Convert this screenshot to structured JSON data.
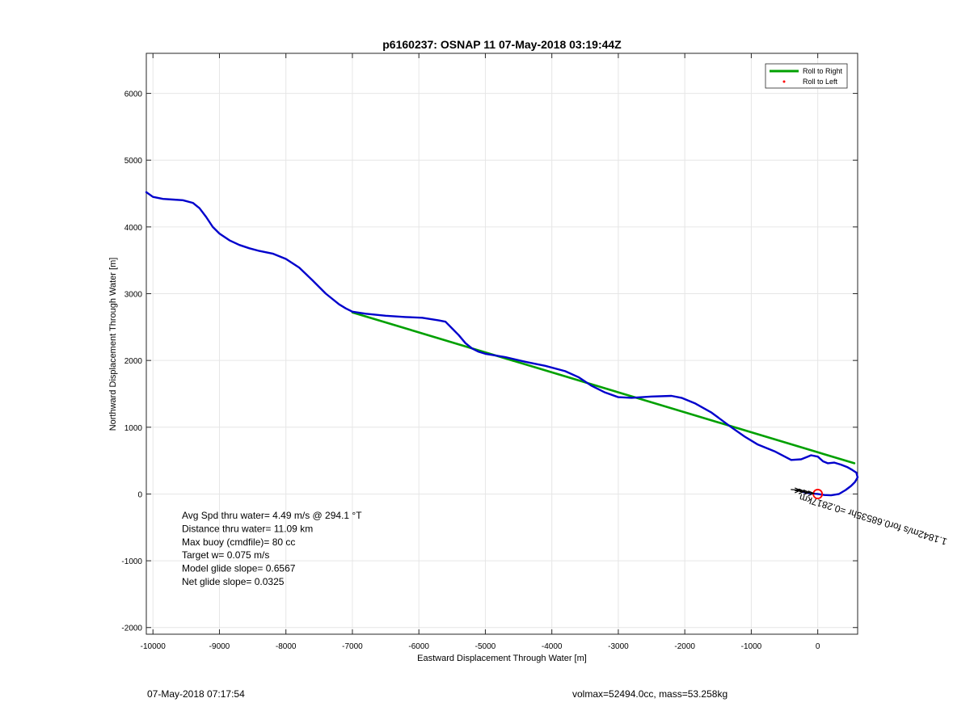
{
  "chart_data": {
    "type": "line",
    "title": "p6160237: OSNAP 11 07-May-2018 03:19:44Z",
    "xlabel": "Eastward Displacement Through Water [m]",
    "ylabel": "Northward Displacement Through Water [m]",
    "xlim": [
      -10100,
      600
    ],
    "ylim": [
      -2100,
      6600
    ],
    "xticks": [
      -10000,
      -9000,
      -8000,
      -7000,
      -6000,
      -5000,
      -4000,
      -3000,
      -2000,
      -1000,
      0
    ],
    "yticks": [
      -2000,
      -1000,
      0,
      1000,
      2000,
      3000,
      4000,
      5000,
      6000
    ],
    "grid": true,
    "legend": {
      "position": "top-right",
      "entries": [
        {
          "name": "Roll to Right",
          "color": "#00a000",
          "style": "line"
        },
        {
          "name": "Roll to Left",
          "color": "#ff0000",
          "style": "point"
        }
      ]
    },
    "series": [
      {
        "color": "#0000cc",
        "x": [
          -10100,
          -10000,
          -9850,
          -9700,
          -9550,
          -9400,
          -9300,
          -9200,
          -9100,
          -9000,
          -8850,
          -8700,
          -8550,
          -8400,
          -8200,
          -8000,
          -7800,
          -7600,
          -7400,
          -7200,
          -7100,
          -7000,
          -6800,
          -6500,
          -6200,
          -5950,
          -5700,
          -5600,
          -5500,
          -5400,
          -5300,
          -5200,
          -5100,
          -5000,
          -4700,
          -4400,
          -4100,
          -3800,
          -3600,
          -3400,
          -3200,
          -3000,
          -2800,
          -2500,
          -2200,
          -2050,
          -1850,
          -1600,
          -1300,
          -1100,
          -900,
          -650,
          -400,
          -250,
          -150,
          -100,
          0,
          80,
          150,
          250,
          350,
          450,
          520,
          580,
          600,
          560,
          500,
          420,
          320,
          200,
          100,
          0,
          -120,
          -180,
          -220
        ],
        "y": [
          4520,
          4450,
          4420,
          4410,
          4400,
          4360,
          4280,
          4150,
          4000,
          3900,
          3800,
          3730,
          3680,
          3640,
          3600,
          3520,
          3390,
          3200,
          3000,
          2840,
          2780,
          2730,
          2700,
          2670,
          2650,
          2640,
          2600,
          2580,
          2480,
          2380,
          2260,
          2180,
          2130,
          2100,
          2050,
          1980,
          1920,
          1840,
          1750,
          1620,
          1520,
          1450,
          1440,
          1460,
          1470,
          1440,
          1360,
          1220,
          1000,
          860,
          740,
          640,
          510,
          520,
          560,
          580,
          560,
          490,
          460,
          470,
          440,
          400,
          360,
          320,
          250,
          180,
          120,
          60,
          0,
          -20,
          -15,
          0,
          10,
          20,
          30
        ]
      },
      {
        "name": "Roll to Right",
        "color": "#00a000",
        "x": [
          -7000,
          550
        ],
        "y": [
          2720,
          460
        ]
      }
    ],
    "markers": [
      {
        "type": "circle",
        "x": 0,
        "y": 0,
        "color": "#ff0000"
      },
      {
        "type": "arrows",
        "x": [
          -260,
          -200,
          -130,
          -60
        ],
        "y": [
          55,
          40,
          25,
          10
        ],
        "color": "#000000"
      }
    ],
    "annotations": {
      "rotated_label": "1.1842m/s for0.68535hr =0.2817km",
      "rotated_anchor": {
        "x": -260,
        "y": 0
      },
      "stats": [
        "Avg Spd thru water=  4.49 m/s @ 294.1 °T",
        "Distance thru water= 11.09 km",
        "Max buoy (cmdfile)= 80 cc",
        "Target w= 0.075 m/s",
        "Model glide slope= 0.6567",
        "Net glide slope= 0.0325"
      ]
    }
  },
  "footer": {
    "date": "07-May-2018 07:17:54",
    "info": "volmax=52494.0cc, mass=53.258kg"
  }
}
